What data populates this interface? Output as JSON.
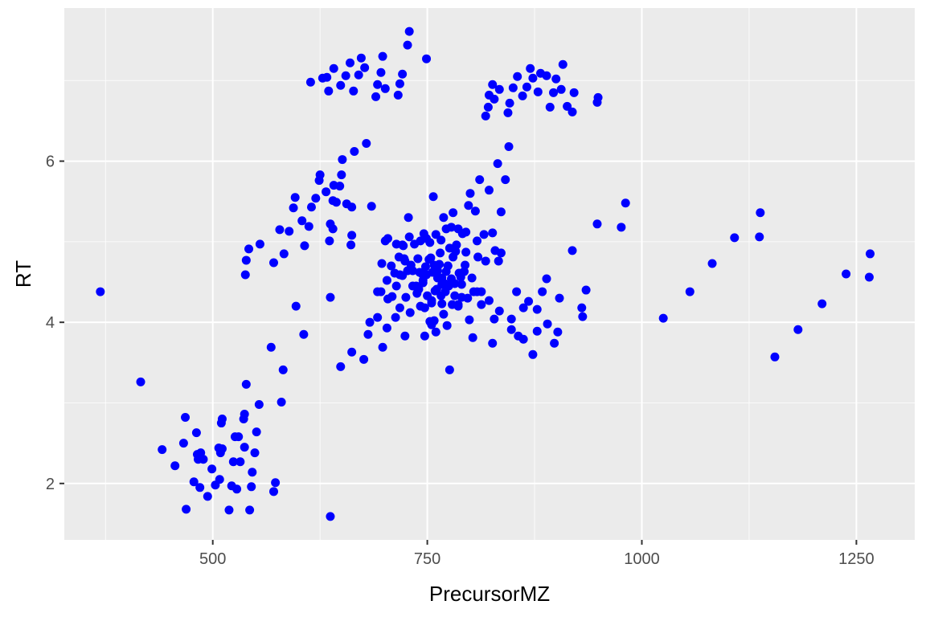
{
  "chart_data": {
    "type": "scatter",
    "title": "",
    "xlabel": "PrecursorMZ",
    "ylabel": "RT",
    "xlim": [
      327,
      1318
    ],
    "ylim": [
      1.3,
      7.9
    ],
    "x_ticks": [
      500,
      750,
      1000,
      1250
    ],
    "x_tick_labels": [
      "500",
      "750",
      "1000",
      "1250"
    ],
    "y_ticks": [
      2,
      4,
      6
    ],
    "y_tick_labels": [
      "2",
      "4",
      "6"
    ],
    "grid": true,
    "legend": "none",
    "colors": {
      "panel": "#ebebeb",
      "grid": "#ffffff",
      "point": "#0000ff"
    },
    "series": [
      {
        "points": [
          [
            369,
            4.38
          ],
          [
            416,
            3.26
          ],
          [
            441,
            2.42
          ],
          [
            456,
            2.22
          ],
          [
            466,
            2.5
          ],
          [
            468,
            2.82
          ],
          [
            469,
            1.68
          ],
          [
            478,
            2.02
          ],
          [
            481,
            2.63
          ],
          [
            482,
            2.36
          ],
          [
            483,
            2.3
          ],
          [
            485,
            1.95
          ],
          [
            486,
            2.38
          ],
          [
            489,
            2.3
          ],
          [
            494,
            1.84
          ],
          [
            499,
            2.18
          ],
          [
            503,
            1.98
          ],
          [
            507,
            2.44
          ],
          [
            508,
            2.05
          ],
          [
            509,
            2.38
          ],
          [
            510,
            2.75
          ],
          [
            511,
            2.8
          ],
          [
            511,
            2.43
          ],
          [
            519,
            1.67
          ],
          [
            522,
            1.97
          ],
          [
            524,
            2.27
          ],
          [
            526,
            2.58
          ],
          [
            528,
            1.93
          ],
          [
            530,
            2.58
          ],
          [
            532,
            2.27
          ],
          [
            536,
            2.8
          ],
          [
            537,
            2.45
          ],
          [
            537,
            2.86
          ],
          [
            539,
            3.23
          ],
          [
            543,
            1.67
          ],
          [
            545,
            1.96
          ],
          [
            546,
            2.14
          ],
          [
            549,
            2.38
          ],
          [
            551,
            2.64
          ],
          [
            554,
            2.98
          ],
          [
            568,
            3.69
          ],
          [
            571,
            1.9
          ],
          [
            573,
            2.01
          ],
          [
            580,
            3.01
          ],
          [
            582,
            3.41
          ],
          [
            606,
            3.85
          ],
          [
            597,
            4.2
          ],
          [
            637,
            1.59
          ],
          [
            637,
            4.31
          ],
          [
            640,
            5.16
          ],
          [
            649,
            3.45
          ],
          [
            662,
            3.63
          ],
          [
            676,
            3.54
          ],
          [
            681,
            3.85
          ],
          [
            683,
            4.0
          ],
          [
            692,
            4.06
          ],
          [
            698,
            3.69
          ],
          [
            703,
            3.93
          ],
          [
            713,
            4.06
          ],
          [
            724,
            3.83
          ],
          [
            747,
            3.83
          ],
          [
            753,
            4.01
          ],
          [
            755,
            3.97
          ],
          [
            760,
            3.88
          ],
          [
            769,
            4.1
          ],
          [
            773,
            3.96
          ],
          [
            776,
            3.41
          ],
          [
            799,
            4.03
          ],
          [
            803,
            3.81
          ],
          [
            826,
            3.74
          ],
          [
            848,
            3.91
          ],
          [
            856,
            3.83
          ],
          [
            862,
            3.79
          ],
          [
            873,
            3.6
          ],
          [
            878,
            3.89
          ],
          [
            890,
            3.98
          ],
          [
            898,
            3.74
          ],
          [
            902,
            3.88
          ],
          [
            538,
            4.59
          ],
          [
            539,
            4.77
          ],
          [
            542,
            4.91
          ],
          [
            555,
            4.97
          ],
          [
            571,
            4.74
          ],
          [
            578,
            5.15
          ],
          [
            583,
            4.85
          ],
          [
            589,
            5.13
          ],
          [
            594,
            5.42
          ],
          [
            596,
            5.55
          ],
          [
            604,
            5.26
          ],
          [
            607,
            4.95
          ],
          [
            612,
            5.19
          ],
          [
            615,
            5.43
          ],
          [
            620,
            5.54
          ],
          [
            624,
            5.76
          ],
          [
            625,
            5.83
          ],
          [
            632,
            5.62
          ],
          [
            636,
            5.01
          ],
          [
            637,
            5.22
          ],
          [
            640,
            5.51
          ],
          [
            641,
            5.7
          ],
          [
            644,
            5.49
          ],
          [
            648,
            5.69
          ],
          [
            650,
            5.83
          ],
          [
            651,
            6.02
          ],
          [
            656,
            5.47
          ],
          [
            661,
            4.96
          ],
          [
            662,
            5.08
          ],
          [
            662,
            5.43
          ],
          [
            665,
            6.12
          ],
          [
            679,
            6.22
          ],
          [
            685,
            5.44
          ],
          [
            701,
            5.01
          ],
          [
            704,
            5.04
          ],
          [
            708,
            4.7
          ],
          [
            714,
            4.97
          ],
          [
            718,
            4.59
          ],
          [
            721,
            4.96
          ],
          [
            723,
            4.79
          ],
          [
            728,
            5.3
          ],
          [
            729,
            5.06
          ],
          [
            731,
            4.71
          ],
          [
            735,
            4.97
          ],
          [
            740,
            4.41
          ],
          [
            741,
            4.62
          ],
          [
            742,
            5.01
          ],
          [
            744,
            4.6
          ],
          [
            746,
            5.1
          ],
          [
            748,
            4.69
          ],
          [
            749,
            5.04
          ],
          [
            753,
            4.99
          ],
          [
            756,
            4.62
          ],
          [
            757,
            5.56
          ],
          [
            759,
            4.39
          ],
          [
            760,
            5.09
          ],
          [
            762,
            4.64
          ],
          [
            764,
            4.72
          ],
          [
            766,
            5.02
          ],
          [
            767,
            4.55
          ],
          [
            769,
            5.3
          ],
          [
            771,
            4.38
          ],
          [
            772,
            5.16
          ],
          [
            774,
            4.7
          ],
          [
            776,
            4.92
          ],
          [
            778,
            5.18
          ],
          [
            780,
            5.36
          ],
          [
            782,
            4.48
          ],
          [
            784,
            4.96
          ],
          [
            786,
            5.16
          ],
          [
            789,
            4.56
          ],
          [
            791,
            5.1
          ],
          [
            793,
            4.63
          ],
          [
            795,
            5.12
          ],
          [
            798,
            5.45
          ],
          [
            800,
            5.6
          ],
          [
            804,
            4.38
          ],
          [
            806,
            5.38
          ],
          [
            808,
            5.01
          ],
          [
            809,
            4.81
          ],
          [
            811,
            5.77
          ],
          [
            813,
            4.38
          ],
          [
            816,
            5.09
          ],
          [
            818,
            4.76
          ],
          [
            822,
            5.64
          ],
          [
            826,
            5.11
          ],
          [
            829,
            4.89
          ],
          [
            833,
            4.76
          ],
          [
            836,
            5.37
          ],
          [
            841,
            5.77
          ],
          [
            845,
            6.18
          ],
          [
            836,
            4.86
          ],
          [
            832,
            5.97
          ],
          [
            747,
            4.18
          ],
          [
            755,
            4.27
          ],
          [
            761,
            4.41
          ],
          [
            767,
            4.23
          ],
          [
            779,
            4.22
          ],
          [
            786,
            4.22
          ],
          [
            790,
            4.31
          ],
          [
            808,
            4.38
          ],
          [
            813,
            4.22
          ],
          [
            822,
            4.27
          ],
          [
            828,
            4.04
          ],
          [
            834,
            4.14
          ],
          [
            848,
            4.04
          ],
          [
            854,
            4.38
          ],
          [
            862,
            4.18
          ],
          [
            868,
            4.26
          ],
          [
            878,
            4.16
          ],
          [
            884,
            4.38
          ],
          [
            889,
            4.54
          ],
          [
            904,
            4.3
          ],
          [
            919,
            4.89
          ],
          [
            930,
            4.18
          ],
          [
            931,
            4.07
          ],
          [
            935,
            4.4
          ],
          [
            948,
            5.22
          ],
          [
            976,
            5.18
          ],
          [
            981,
            5.48
          ],
          [
            1025,
            4.05
          ],
          [
            1056,
            4.38
          ],
          [
            1082,
            4.73
          ],
          [
            1108,
            5.05
          ],
          [
            1137,
            5.06
          ],
          [
            1138,
            5.36
          ],
          [
            1155,
            3.57
          ],
          [
            1182,
            3.91
          ],
          [
            1210,
            4.23
          ],
          [
            1238,
            4.6
          ],
          [
            1265,
            4.56
          ],
          [
            1266,
            4.85
          ],
          [
            692,
            4.38
          ],
          [
            696,
            4.38
          ],
          [
            704,
            4.29
          ],
          [
            709,
            4.32
          ],
          [
            714,
            4.45
          ],
          [
            718,
            4.18
          ],
          [
            721,
            4.58
          ],
          [
            725,
            4.31
          ],
          [
            730,
            4.12
          ],
          [
            733,
            4.45
          ],
          [
            738,
            4.36
          ],
          [
            742,
            4.2
          ],
          [
            745,
            4.49
          ],
          [
            750,
            4.33
          ],
          [
            754,
            4.8
          ],
          [
            758,
            4.02
          ],
          [
            762,
            4.55
          ],
          [
            766,
            4.33
          ],
          [
            770,
            4.48
          ],
          [
            774,
            4.7
          ],
          [
            778,
            4.54
          ],
          [
            782,
            4.33
          ],
          [
            786,
            4.2
          ],
          [
            790,
            4.47
          ],
          [
            794,
            4.71
          ],
          [
            797,
            4.3
          ],
          [
            802,
            4.55
          ],
          [
            697,
            4.73
          ],
          [
            703,
            4.52
          ],
          [
            712,
            4.61
          ],
          [
            717,
            4.81
          ],
          [
            724,
            4.76
          ],
          [
            733,
            4.64
          ],
          [
            739,
            4.79
          ],
          [
            745,
            4.52
          ],
          [
            752,
            4.78
          ],
          [
            758,
            4.71
          ],
          [
            765,
            4.86
          ],
          [
            772,
            4.63
          ],
          [
            780,
            4.81
          ],
          [
            787,
            4.61
          ],
          [
            795,
            4.87
          ],
          [
            722,
            4.95
          ],
          [
            727,
            4.64
          ],
          [
            737,
            4.45
          ],
          [
            749,
            4.59
          ],
          [
            755,
            4.24
          ],
          [
            761,
            4.63
          ],
          [
            767,
            4.47
          ],
          [
            775,
            4.45
          ],
          [
            783,
            4.88
          ],
          [
            614,
            6.98
          ],
          [
            628,
            7.03
          ],
          [
            633,
            7.04
          ],
          [
            635,
            6.87
          ],
          [
            641,
            7.15
          ],
          [
            649,
            6.94
          ],
          [
            655,
            7.06
          ],
          [
            660,
            7.22
          ],
          [
            664,
            6.87
          ],
          [
            670,
            7.07
          ],
          [
            673,
            7.28
          ],
          [
            677,
            7.16
          ],
          [
            690,
            6.8
          ],
          [
            692,
            6.95
          ],
          [
            696,
            7.1
          ],
          [
            698,
            7.3
          ],
          [
            701,
            6.9
          ],
          [
            716,
            6.82
          ],
          [
            718,
            6.96
          ],
          [
            721,
            7.08
          ],
          [
            727,
            7.44
          ],
          [
            729,
            7.61
          ],
          [
            749,
            7.27
          ],
          [
            818,
            6.56
          ],
          [
            821,
            6.67
          ],
          [
            822,
            6.82
          ],
          [
            826,
            6.95
          ],
          [
            828,
            6.77
          ],
          [
            834,
            6.89
          ],
          [
            844,
            6.6
          ],
          [
            846,
            6.72
          ],
          [
            850,
            6.91
          ],
          [
            855,
            7.05
          ],
          [
            861,
            6.81
          ],
          [
            866,
            6.92
          ],
          [
            870,
            7.15
          ],
          [
            873,
            7.03
          ],
          [
            879,
            6.86
          ],
          [
            882,
            7.09
          ],
          [
            889,
            7.06
          ],
          [
            893,
            6.67
          ],
          [
            897,
            6.85
          ],
          [
            900,
            7.02
          ],
          [
            906,
            6.89
          ],
          [
            908,
            7.2
          ],
          [
            913,
            6.68
          ],
          [
            919,
            6.61
          ],
          [
            921,
            6.85
          ],
          [
            948,
            6.73
          ],
          [
            949,
            6.79
          ]
        ]
      }
    ]
  }
}
